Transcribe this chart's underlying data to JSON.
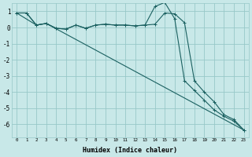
{
  "xlabel": "Humidex (Indice chaleur)",
  "bg_color": "#c8e8e8",
  "grid_color": "#98c8c8",
  "line_color": "#1a6060",
  "xlim": [
    -0.5,
    23.5
  ],
  "ylim": [
    -6.8,
    1.5
  ],
  "yticks": [
    1,
    0,
    -1,
    -2,
    -3,
    -4,
    -5,
    -6
  ],
  "xticks": [
    0,
    1,
    2,
    3,
    4,
    5,
    6,
    7,
    8,
    9,
    10,
    11,
    12,
    13,
    14,
    15,
    16,
    17,
    18,
    19,
    20,
    21,
    22,
    23
  ],
  "line1_x": [
    0,
    1,
    2,
    3,
    4,
    5,
    6,
    7,
    8,
    9,
    10,
    11,
    12,
    13,
    14,
    15,
    16,
    17,
    18,
    19,
    20,
    21,
    22,
    23
  ],
  "line1_y": [
    0.9,
    0.9,
    0.15,
    0.25,
    -0.05,
    -0.1,
    0.15,
    -0.05,
    0.15,
    0.2,
    0.15,
    0.15,
    0.1,
    0.15,
    0.2,
    0.9,
    0.85,
    0.3,
    -3.3,
    -4.0,
    -4.6,
    -5.4,
    -5.7,
    -6.35
  ],
  "line2_x": [
    0,
    1,
    2,
    3,
    4,
    5,
    6,
    7,
    8,
    9,
    10,
    11,
    12,
    13,
    14,
    15,
    16,
    17,
    18,
    19,
    20,
    21,
    22,
    23
  ],
  "line2_y": [
    0.9,
    0.9,
    0.15,
    0.25,
    -0.05,
    -0.1,
    0.15,
    -0.05,
    0.15,
    0.2,
    0.15,
    0.15,
    0.1,
    0.15,
    1.3,
    1.55,
    0.55,
    -3.3,
    -3.9,
    -4.5,
    -5.1,
    -5.5,
    -5.8,
    -6.35
  ],
  "line3_x": [
    0,
    2,
    3,
    23
  ],
  "line3_y": [
    0.9,
    0.15,
    0.25,
    -6.35
  ]
}
